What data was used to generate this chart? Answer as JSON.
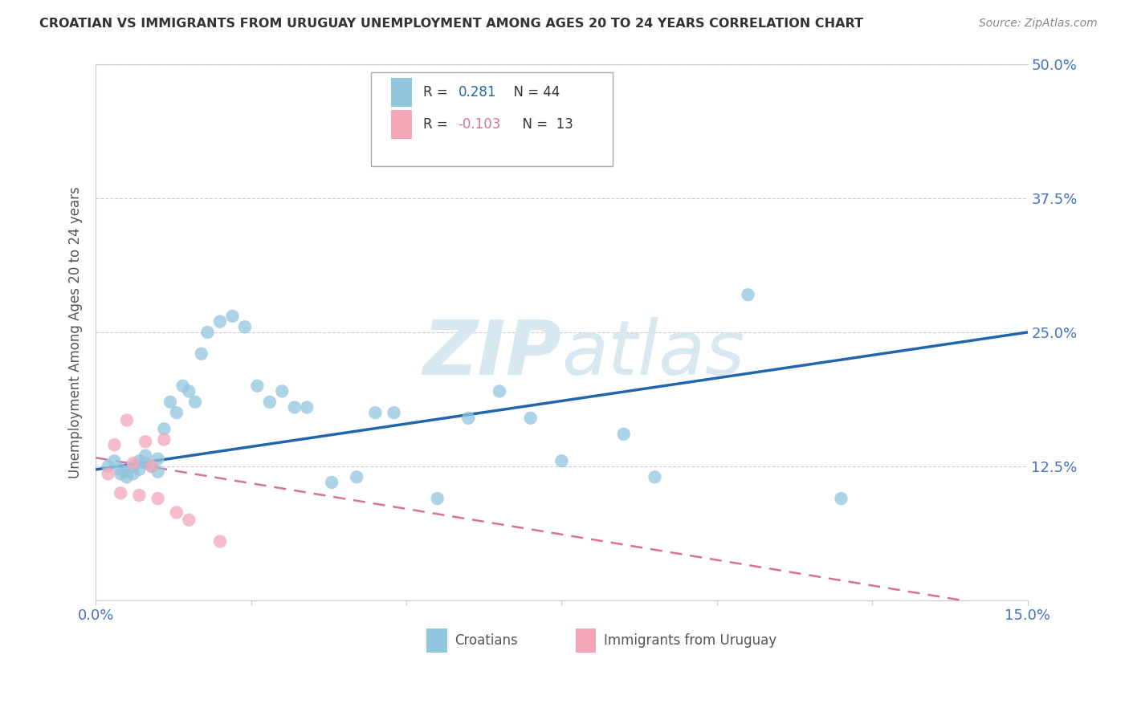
{
  "title": "CROATIAN VS IMMIGRANTS FROM URUGUAY UNEMPLOYMENT AMONG AGES 20 TO 24 YEARS CORRELATION CHART",
  "source": "Source: ZipAtlas.com",
  "ylabel": "Unemployment Among Ages 20 to 24 years",
  "xlim": [
    0.0,
    0.15
  ],
  "ylim": [
    0.0,
    0.5
  ],
  "croatians_R": 0.281,
  "croatians_N": 44,
  "uruguay_R": -0.103,
  "uruguay_N": 13,
  "blue_color": "#92c5de",
  "pink_color": "#f4a6b8",
  "line_blue": "#2166ac",
  "line_pink": "#d6729a",
  "watermark_color": "#d8e8f0",
  "title_color": "#333333",
  "source_color": "#888888",
  "axis_label_color": "#4472c4",
  "ylabel_color": "#555555",
  "legend_R_blue": "#2166ac",
  "legend_R_pink": "#d6729a",
  "legend_N_color": "#333333",
  "croatians_x": [
    0.002,
    0.003,
    0.004,
    0.004,
    0.005,
    0.005,
    0.006,
    0.006,
    0.007,
    0.007,
    0.008,
    0.008,
    0.009,
    0.01,
    0.01,
    0.011,
    0.012,
    0.013,
    0.014,
    0.015,
    0.016,
    0.017,
    0.018,
    0.02,
    0.022,
    0.024,
    0.026,
    0.028,
    0.03,
    0.032,
    0.034,
    0.038,
    0.042,
    0.045,
    0.048,
    0.055,
    0.06,
    0.065,
    0.07,
    0.075,
    0.085,
    0.09,
    0.105,
    0.12
  ],
  "croatians_y": [
    0.125,
    0.13,
    0.118,
    0.122,
    0.115,
    0.12,
    0.125,
    0.118,
    0.13,
    0.122,
    0.128,
    0.135,
    0.125,
    0.132,
    0.12,
    0.16,
    0.185,
    0.175,
    0.2,
    0.195,
    0.185,
    0.23,
    0.25,
    0.26,
    0.265,
    0.255,
    0.2,
    0.185,
    0.195,
    0.18,
    0.18,
    0.11,
    0.115,
    0.175,
    0.175,
    0.095,
    0.17,
    0.195,
    0.17,
    0.13,
    0.155,
    0.115,
    0.285,
    0.095
  ],
  "uruguay_x": [
    0.002,
    0.003,
    0.004,
    0.005,
    0.006,
    0.007,
    0.008,
    0.009,
    0.01,
    0.011,
    0.013,
    0.015,
    0.02
  ],
  "uruguay_y": [
    0.118,
    0.145,
    0.1,
    0.168,
    0.128,
    0.098,
    0.148,
    0.125,
    0.095,
    0.15,
    0.082,
    0.075,
    0.055
  ]
}
